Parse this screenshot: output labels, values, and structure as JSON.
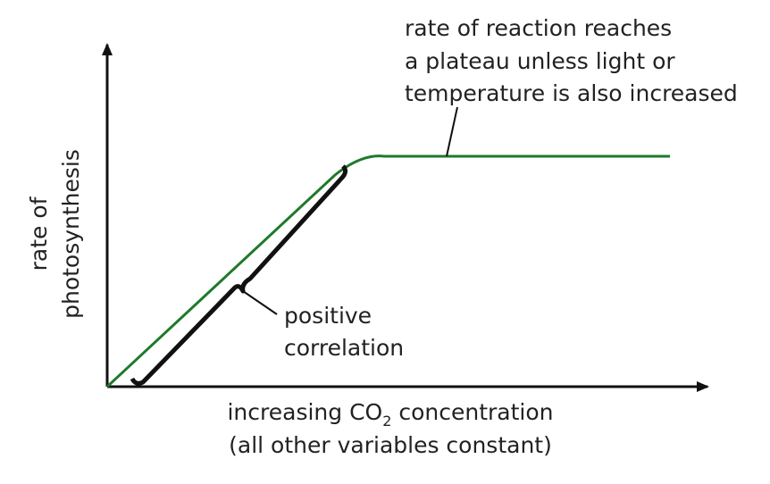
{
  "annotation": {
    "lines": [
      "rate of reaction reaches",
      "a plateau unless light or",
      "temperature is also increased"
    ]
  },
  "bracket_label": {
    "lines": [
      "positive",
      "correlation"
    ]
  },
  "y_axis_label": {
    "lines": [
      "rate of",
      "photosynthesis"
    ]
  },
  "x_axis_label": {
    "line1": {
      "before": "increasing CO",
      "subscript": "2",
      "after": " concentration"
    },
    "line2": "(all other variables constant)"
  }
}
